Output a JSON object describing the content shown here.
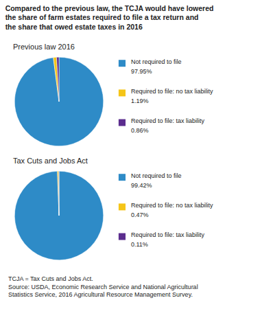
{
  "title": "Compared to the previous law, the TCJA would have lowered\nthe share of farm estates required to file a tax return and\nthe share that owed estate taxes in 2016",
  "annotations": [
    "TCJA = Tax Cuts and Jobs Act.\nSource: USDA, Economic Research Service and National Agricultural\nStatistics Service, 2016 Agricultural Resource Management Survey."
  ],
  "chart_data": [
    {
      "type": "pie",
      "title": "Previous law 2016",
      "categories": [
        "Not required to file",
        "Required to file: no tax liability",
        "Required to file: tax liability"
      ],
      "values": [
        97.95,
        1.19,
        0.86
      ],
      "value_labels": [
        "97.95%",
        "1.19%",
        "0.86%"
      ],
      "colors": [
        "#2E8BC7",
        "#F5C518",
        "#5B2D8E"
      ],
      "legend": "right"
    },
    {
      "type": "pie",
      "title": "Tax Cuts and Jobs Act",
      "categories": [
        "Not required to file",
        "Required to file: no tax liability",
        "Required to file: tax liability"
      ],
      "values": [
        99.42,
        0.47,
        0.11
      ],
      "value_labels": [
        "99.42%",
        "0.47%",
        "0.11%"
      ],
      "colors": [
        "#2E8BC7",
        "#F5C518",
        "#5B2D8E"
      ],
      "legend": "right"
    }
  ]
}
